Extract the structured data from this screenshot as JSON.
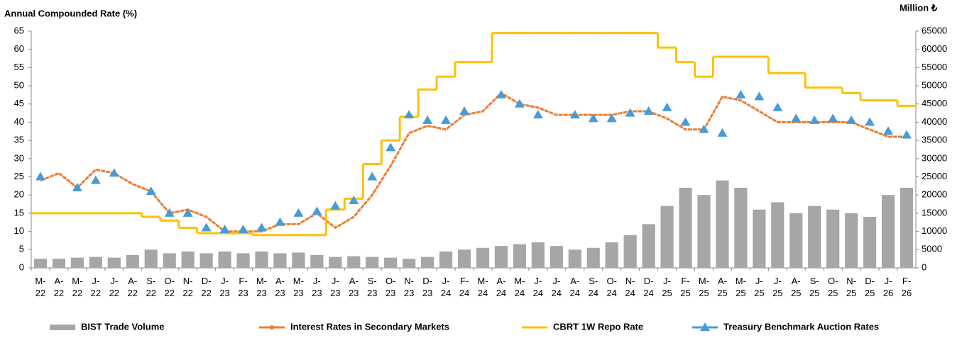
{
  "chart_data": {
    "type": "combo",
    "y_axis_label": "Annual Compounded Rate (%)",
    "y2_axis_label": "Million ₺",
    "categories": [
      "M- 22",
      "A- 22",
      "M- 22",
      "J- 22",
      "J- 22",
      "A- 22",
      "S- 22",
      "O- 22",
      "N- 22",
      "D- 22",
      "J- 23",
      "F- 23",
      "M- 23",
      "A- 23",
      "M- 23",
      "J- 23",
      "J- 23",
      "A- 23",
      "S- 23",
      "O- 23",
      "N- 23",
      "D- 23",
      "J- 24",
      "F- 24",
      "M- 24",
      "A- 24",
      "M- 24",
      "J- 24",
      "J- 24",
      "A- 24",
      "S- 24",
      "O- 24",
      "N- 24",
      "D- 24",
      "J- 25",
      "F- 25",
      "M- 25",
      "A- 25",
      "M- 25",
      "J- 25",
      "J- 25",
      "A- 25",
      "S- 25",
      "O- 25",
      "N- 25",
      "D- 25",
      "J- 26",
      "F- 26"
    ],
    "ylim": [
      0,
      65
    ],
    "yticks": [
      0,
      5,
      10,
      15,
      20,
      25,
      30,
      35,
      40,
      45,
      50,
      55,
      60,
      65
    ],
    "y2lim": [
      0,
      65000
    ],
    "y2ticks": [
      0,
      5000,
      10000,
      15000,
      20000,
      25000,
      30000,
      35000,
      40000,
      45000,
      50000,
      55000,
      60000,
      65000
    ],
    "legend": "bottom",
    "series": [
      {
        "name": "BIST Trade Volume",
        "type": "bar",
        "axis": "y2",
        "color": "#a6a6a6",
        "values": [
          2500,
          2500,
          2800,
          3000,
          2800,
          3500,
          5000,
          4000,
          4500,
          4000,
          4500,
          4000,
          4500,
          4000,
          4200,
          3500,
          3000,
          3200,
          3000,
          2800,
          2500,
          3000,
          4500,
          5000,
          5500,
          6000,
          6500,
          7000,
          6000,
          5000,
          5500,
          7000,
          9000,
          12000,
          17000,
          22000,
          20000,
          24000,
          22000,
          16000,
          18000,
          15000,
          17000,
          16000,
          15000,
          14000,
          20000,
          22000
        ]
      },
      {
        "name": "Interest Rates in Secondary Markets",
        "type": "line",
        "color": "#ed7d31",
        "values": [
          24,
          26,
          22,
          27,
          26,
          23,
          21,
          15,
          16,
          14,
          10,
          10,
          10,
          12,
          12,
          15,
          11,
          14,
          20,
          28,
          37,
          39,
          38,
          42,
          43,
          48,
          45,
          44,
          42,
          42,
          42,
          42,
          43,
          43,
          41,
          38,
          38,
          47,
          46,
          43,
          40,
          40,
          40,
          40,
          40,
          38,
          36,
          36
        ]
      },
      {
        "name": "CBRT 1W Repo Rate",
        "type": "step",
        "color": "#ffc000",
        "values": [
          15,
          15,
          15,
          15,
          15,
          15,
          14,
          13,
          11,
          9.5,
          9.5,
          9.5,
          9,
          9,
          9,
          9,
          16,
          19,
          28.5,
          35,
          41.5,
          49,
          52.5,
          56.5,
          56.5,
          64.5,
          64.5,
          64.5,
          64.5,
          64.5,
          64.5,
          64.5,
          64.5,
          64.5,
          60.5,
          56.5,
          52.5,
          58,
          58,
          58,
          53.5,
          53.5,
          49.5,
          49.5,
          48,
          46,
          46,
          44.5
        ]
      },
      {
        "name": "Treasury Benchmark Auction Rates",
        "type": "marker",
        "color": "#4a9bd5",
        "values": [
          25,
          null,
          22,
          24,
          26,
          null,
          21,
          15,
          15,
          11,
          10.5,
          10.5,
          11,
          12.5,
          15,
          15.5,
          17,
          18.5,
          25,
          33,
          42,
          40.5,
          40.5,
          43,
          null,
          47.5,
          45,
          42,
          null,
          42,
          41,
          41,
          42.5,
          43,
          44,
          40,
          38,
          37,
          47.5,
          47,
          44,
          41,
          40.5,
          41,
          40.5,
          40,
          37.5,
          36.5
        ]
      }
    ]
  }
}
